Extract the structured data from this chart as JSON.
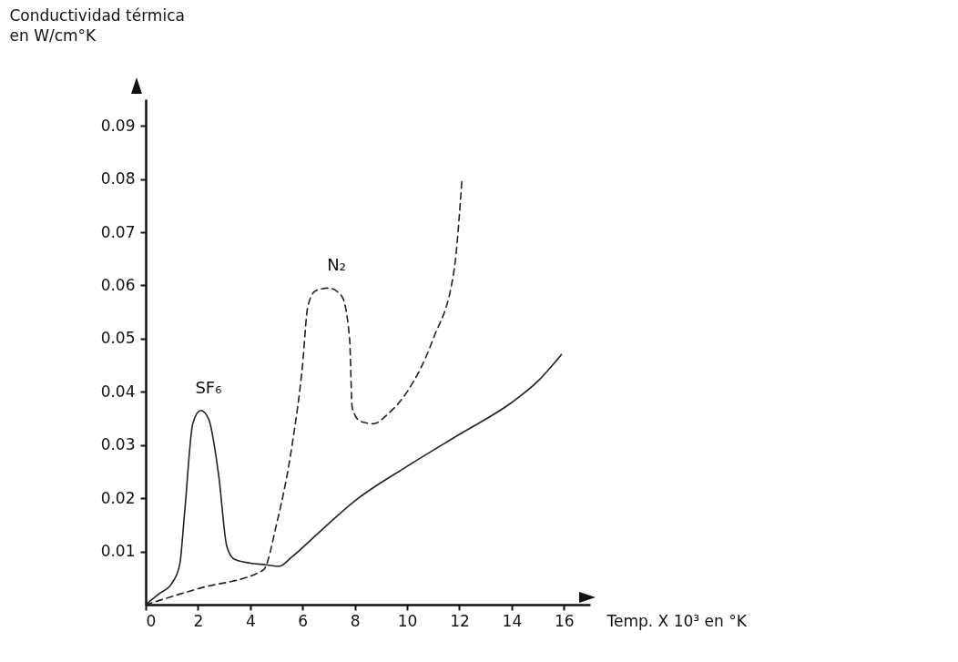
{
  "chart_data": {
    "type": "line",
    "ylabel": "Conductividad térmica\nen W/cm°K",
    "xlabel": "Temp. X 10³ en °K",
    "xlim": [
      0,
      17
    ],
    "ylim": [
      0,
      0.095
    ],
    "xticks": [
      0,
      2,
      4,
      6,
      8,
      10,
      12,
      14,
      16
    ],
    "yticks": [
      0.01,
      0.02,
      0.03,
      0.04,
      0.05,
      0.06,
      0.07,
      0.08,
      0.09
    ],
    "grid": false,
    "marker": "none",
    "series": [
      {
        "color": "#222222",
        "line_style": "solid",
        "x": [
          0,
          0.5,
          1.0,
          1.3,
          1.5,
          1.8,
          2.1,
          2.4,
          2.8,
          3.1,
          3.4,
          4.0,
          4.6,
          5.1,
          5.6,
          6.5,
          8,
          10,
          12,
          14,
          15,
          15.9
        ],
        "values": [
          0,
          0.002,
          0.004,
          0.0075,
          0.018,
          0.034,
          0.0365,
          0.035,
          0.024,
          0.011,
          0.0085,
          0.0078,
          0.0075,
          0.0072,
          0.009,
          0.013,
          0.0195,
          0.026,
          0.032,
          0.038,
          0.042,
          0.047
        ]
      },
      {
        "color": "#222222",
        "line_style": "dashed",
        "x": [
          0,
          2,
          4.5,
          5,
          5.6,
          6.0,
          6.2,
          6.5,
          7,
          7.5,
          7.8,
          7.9,
          8.2,
          8.7,
          9.3,
          10,
          11,
          11.8,
          12.1
        ],
        "values": [
          0,
          0.003,
          0.0065,
          0.015,
          0.03,
          0.045,
          0.056,
          0.059,
          0.0595,
          0.058,
          0.05,
          0.037,
          0.0345,
          0.034,
          0.036,
          0.04,
          0.05,
          0.063,
          0.08
        ]
      }
    ],
    "annotations": [
      "SF₆",
      "N₂"
    ]
  }
}
